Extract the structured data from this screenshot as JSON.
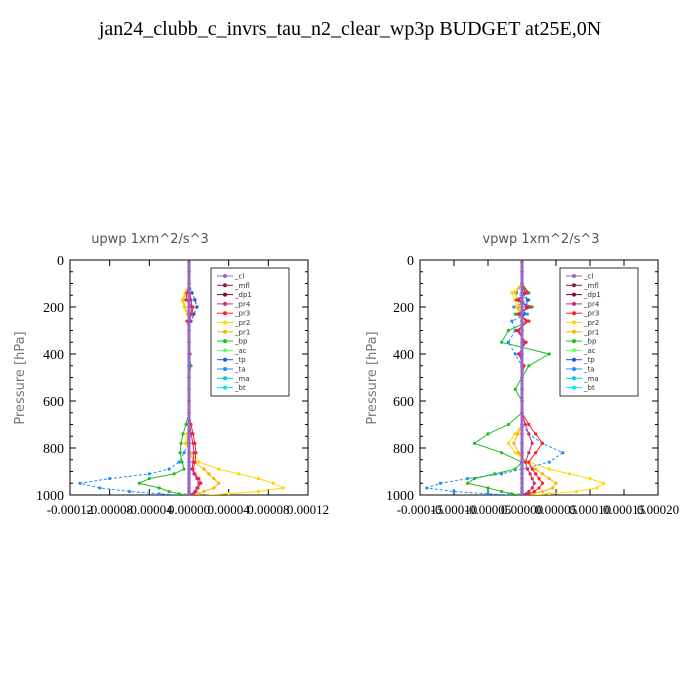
{
  "page": {
    "title": "jan24_clubb_c_invrs_tau_n2_clear_wp3p  BUDGET at25E,0N"
  },
  "chart_data": [
    {
      "type": "line",
      "title": "upwp   1xm^2/s^3",
      "ylabel": "Pressure [hPa]",
      "xlim": [
        -0.00012,
        0.00012
      ],
      "ylim": [
        1000,
        0
      ],
      "y_reversed": true,
      "x_ticks": [
        -0.00012,
        -8e-05,
        -4e-05,
        0,
        4e-05,
        8e-05,
        0.00012
      ],
      "x_tick_labels": [
        "-0.00012",
        "-0.00008",
        "-0.00004",
        "0.00000",
        "0.00004",
        "0.00008",
        "0.00012"
      ],
      "y_ticks": [
        0,
        200,
        400,
        600,
        800,
        1000
      ],
      "y_tick_labels": [
        "0",
        "200",
        "400",
        "600",
        "800",
        "1000"
      ],
      "legend": {
        "position": "top-right",
        "entries": [
          "_cl",
          "_mfl",
          "_dp1",
          "_pr4",
          "_pr3",
          "_pr2",
          "_pr1",
          "_bp",
          "_ac",
          "_tp",
          "_ta",
          "_ma",
          "_bt"
        ]
      },
      "pressure": [
        10,
        50,
        100,
        140,
        170,
        200,
        230,
        260,
        300,
        350,
        400,
        450,
        500,
        550,
        600,
        650,
        700,
        740,
        780,
        820,
        860,
        890,
        910,
        930,
        950,
        970,
        985,
        995,
        1000
      ],
      "series": [
        {
          "name": "_cl",
          "color": "#9966cc",
          "values": [
            0,
            0,
            0,
            0,
            0,
            0,
            0,
            0,
            0,
            0,
            0,
            0,
            0,
            0,
            0,
            0,
            0,
            0,
            0,
            0,
            0,
            0,
            0,
            0,
            0,
            0,
            0,
            0,
            0
          ]
        },
        {
          "name": "_mfl",
          "color": "#8b1a4a",
          "values": [
            0,
            0,
            0,
            0,
            0,
            0,
            0,
            0,
            0,
            0,
            0,
            0,
            0,
            0,
            0,
            0,
            0,
            0,
            0,
            0,
            0,
            0,
            0,
            0,
            0,
            0,
            0,
            0,
            0
          ]
        },
        {
          "name": "_dp1",
          "color": "#800040",
          "values": [
            0,
            0,
            0,
            0,
            0,
            0,
            0,
            0,
            0,
            0,
            0,
            0,
            0,
            0,
            0,
            0,
            0,
            0,
            0,
            0,
            0,
            0,
            0,
            0,
            0,
            0,
            0,
            0,
            0
          ]
        },
        {
          "name": "_pr4",
          "color": "#cc2a7a",
          "values": [
            0,
            0,
            0,
            1e-06,
            2e-06,
            3e-06,
            2e-06,
            1e-06,
            0,
            0,
            0,
            0,
            0,
            0,
            0,
            0,
            1e-06,
            2e-06,
            4e-06,
            5e-06,
            4e-06,
            3e-06,
            5e-06,
            8e-06,
            1e-05,
            8e-06,
            6e-06,
            4e-06,
            2e-06
          ]
        },
        {
          "name": "_pr3",
          "color": "#ff2020",
          "values": [
            0,
            0,
            0,
            -2e-06,
            -3e-06,
            4e-06,
            3e-06,
            -2e-06,
            0,
            0,
            1e-06,
            0,
            0,
            0,
            0,
            0,
            2e-06,
            4e-06,
            6e-06,
            7e-06,
            6e-06,
            4e-06,
            6e-06,
            1e-05,
            1.2e-05,
            9e-06,
            7e-06,
            5e-06,
            3e-06
          ]
        },
        {
          "name": "_pr2",
          "color": "#ffd700",
          "values": [
            0,
            0,
            0,
            -4e-06,
            -7e-06,
            -5e-06,
            -2e-06,
            0,
            0,
            0,
            0,
            0,
            0,
            0,
            0,
            0,
            0,
            -2e-06,
            -4e-06,
            2e-06,
            1e-05,
            3e-05,
            5e-05,
            7e-05,
            8.5e-05,
            9.5e-05,
            7e-05,
            4e-05,
            2e-05
          ]
        },
        {
          "name": "_pr1",
          "color": "#ffb000",
          "values": [
            0,
            0,
            0,
            -3e-06,
            -6e-06,
            -4e-06,
            -1e-06,
            0,
            0,
            0,
            0,
            0,
            0,
            0,
            0,
            0,
            0,
            -1e-06,
            -2e-06,
            1e-06,
            5e-06,
            1.5e-05,
            2e-05,
            2.5e-05,
            3e-05,
            2.5e-05,
            1.5e-05,
            1e-05,
            5e-06
          ]
        },
        {
          "name": "_bp",
          "color": "#22bb22",
          "values": [
            0,
            0,
            0,
            0,
            0,
            0,
            0,
            0,
            0,
            0,
            0,
            2e-06,
            0,
            0,
            0,
            0,
            -3e-06,
            -6e-06,
            -8e-06,
            -9e-06,
            -7e-06,
            -5e-06,
            -1.5e-05,
            -4e-05,
            -5e-05,
            -3e-05,
            -2e-05,
            -1e-05,
            -4e-06
          ]
        },
        {
          "name": "_ac",
          "color": "#66ff66",
          "values": [
            0,
            0,
            0,
            0,
            0,
            0,
            0,
            0,
            0,
            0,
            0,
            0,
            0,
            0,
            0,
            0,
            0,
            0,
            0,
            0,
            0,
            0,
            0,
            0,
            0,
            0,
            0,
            0,
            0
          ]
        },
        {
          "name": "_tp",
          "color": "#2255ee",
          "values": [
            0,
            0,
            0,
            3e-06,
            6e-06,
            8e-06,
            5e-06,
            2e-06,
            0,
            0,
            0,
            0,
            0,
            0,
            0,
            0,
            0,
            0,
            0,
            0,
            0,
            0,
            0,
            0,
            0,
            0,
            0,
            0,
            0
          ]
        },
        {
          "name": "_ta",
          "color": "#1e90ff",
          "values": [
            0,
            0,
            0,
            3e-06,
            6e-06,
            8e-06,
            5e-06,
            2e-06,
            0,
            0,
            0,
            0,
            0,
            0,
            0,
            0,
            0,
            0,
            0,
            -5e-06,
            -1e-05,
            -2e-05,
            -4e-05,
            -8e-05,
            -0.00011,
            -9e-05,
            -6e-05,
            -3e-05,
            -1e-05
          ]
        },
        {
          "name": "_ma",
          "color": "#00ced1",
          "values": [
            0,
            0,
            0,
            0,
            0,
            0,
            0,
            0,
            0,
            0,
            0,
            0,
            0,
            0,
            0,
            0,
            0,
            0,
            0,
            0,
            0,
            0,
            0,
            0,
            0,
            0,
            0,
            0,
            0
          ]
        },
        {
          "name": "_bt",
          "color": "#00e5ff",
          "values": [
            0,
            0,
            0,
            0,
            0,
            0,
            0,
            0,
            0,
            0,
            0,
            0,
            0,
            0,
            0,
            0,
            0,
            0,
            0,
            0,
            0,
            0,
            0,
            0,
            0,
            0,
            0,
            0,
            0
          ]
        }
      ]
    },
    {
      "type": "line",
      "title": "vpwp   1xm^2/s^3",
      "ylabel": "Pressure [hPa]",
      "xlim": [
        -0.00015,
        0.0002
      ],
      "ylim": [
        1000,
        0
      ],
      "y_reversed": true,
      "x_ticks": [
        -0.00015,
        -0.0001,
        -5e-05,
        0,
        5e-05,
        0.0001,
        0.00015,
        0.0002
      ],
      "x_tick_labels": [
        "-0.00015",
        "-0.00010",
        "-0.00005",
        "0.00000",
        "0.00005",
        "0.00010",
        "0.00015",
        "0.00020"
      ],
      "y_ticks": [
        0,
        200,
        400,
        600,
        800,
        1000
      ],
      "y_tick_labels": [
        "0",
        "200",
        "400",
        "600",
        "800",
        "1000"
      ],
      "legend": {
        "position": "top-right",
        "entries": [
          "_cl",
          "_mfl",
          "_dp1",
          "_pr4",
          "_pr3",
          "_pr2",
          "_pr1",
          "_bp",
          "_ac",
          "_tp",
          "_ta",
          "_ma",
          "_bt"
        ]
      },
      "pressure": [
        10,
        50,
        100,
        140,
        170,
        200,
        230,
        260,
        300,
        350,
        400,
        450,
        500,
        550,
        600,
        650,
        700,
        740,
        780,
        820,
        860,
        890,
        910,
        930,
        950,
        970,
        985,
        995,
        1000
      ],
      "series": [
        {
          "name": "_cl",
          "color": "#9966cc",
          "values": [
            0,
            0,
            0,
            0,
            0,
            0,
            0,
            0,
            0,
            0,
            0,
            0,
            0,
            0,
            0,
            0,
            0,
            0,
            0,
            0,
            0,
            0,
            0,
            0,
            0,
            0,
            0,
            0,
            0
          ]
        },
        {
          "name": "_mfl",
          "color": "#8b1a4a",
          "values": [
            0,
            0,
            0,
            0,
            0,
            0,
            0,
            0,
            0,
            0,
            0,
            0,
            0,
            0,
            0,
            0,
            0,
            0,
            0,
            0,
            0,
            0,
            0,
            0,
            0,
            0,
            0,
            0,
            0
          ]
        },
        {
          "name": "_dp1",
          "color": "#800040",
          "values": [
            0,
            0,
            0,
            0,
            0,
            0,
            0,
            0,
            0,
            0,
            0,
            0,
            0,
            0,
            0,
            0,
            0,
            0,
            0,
            0,
            0,
            0,
            0,
            0,
            0,
            0,
            0,
            0,
            0
          ]
        },
        {
          "name": "_pr4",
          "color": "#cc2a7a",
          "values": [
            0,
            0,
            0,
            5e-06,
            -5e-06,
            8e-06,
            -4e-06,
            6e-06,
            -5e-06,
            4e-06,
            -3e-06,
            0,
            0,
            0,
            0,
            0,
            5e-06,
            1e-05,
            1.5e-05,
            1e-05,
            5e-06,
            8e-06,
            1.2e-05,
            1.5e-05,
            1.8e-05,
            1.5e-05,
            1e-05,
            6e-06,
            3e-06
          ]
        },
        {
          "name": "_pr3",
          "color": "#ff2020",
          "values": [
            0,
            0,
            0,
            8e-06,
            -8e-06,
            1.2e-05,
            -6e-06,
            1e-05,
            -8e-06,
            6e-06,
            -5e-06,
            3e-06,
            0,
            0,
            0,
            0,
            1e-05,
            2e-05,
            3e-05,
            2e-05,
            1e-05,
            1.5e-05,
            2e-05,
            2.5e-05,
            3e-05,
            2.5e-05,
            1.8e-05,
            1e-05,
            5e-06
          ]
        },
        {
          "name": "_pr2",
          "color": "#ffd700",
          "values": [
            0,
            0,
            0,
            -1.5e-05,
            -1e-05,
            -8e-06,
            -4e-06,
            0,
            0,
            0,
            0,
            0,
            0,
            0,
            0,
            0,
            0,
            -1e-05,
            -2e-05,
            -1e-05,
            1e-05,
            4e-05,
            7e-05,
            0.0001,
            0.00012,
            0.00011,
            8e-05,
            4e-05,
            2e-05
          ]
        },
        {
          "name": "_pr1",
          "color": "#ffb000",
          "values": [
            0,
            0,
            0,
            -1e-05,
            -6e-06,
            -5e-06,
            -2e-06,
            0,
            0,
            0,
            0,
            0,
            0,
            0,
            0,
            0,
            0,
            -6e-06,
            -1.2e-05,
            -5e-06,
            5e-06,
            2e-05,
            3e-05,
            4e-05,
            5e-05,
            4.5e-05,
            3e-05,
            1.5e-05,
            8e-06
          ]
        },
        {
          "name": "_bp",
          "color": "#22bb22",
          "values": [
            0,
            0,
            0,
            1e-05,
            -1e-05,
            1.5e-05,
            -1e-05,
            1e-05,
            -2e-05,
            -3e-05,
            4e-05,
            1e-05,
            0,
            -1e-05,
            0,
            0,
            -2e-05,
            -5e-05,
            -7e-05,
            -3e-05,
            0,
            -1e-05,
            -4e-05,
            -7e-05,
            -8e-05,
            -5e-05,
            -3e-05,
            -1.5e-05,
            -5e-06
          ]
        },
        {
          "name": "_ac",
          "color": "#66ff66",
          "values": [
            0,
            0,
            0,
            0,
            0,
            0,
            0,
            0,
            0,
            0,
            0,
            0,
            0,
            0,
            0,
            0,
            0,
            0,
            0,
            0,
            0,
            0,
            0,
            0,
            0,
            0,
            0,
            0,
            0
          ]
        },
        {
          "name": "_tp",
          "color": "#2255ee",
          "values": [
            0,
            0,
            0,
            4e-06,
            8e-06,
            6e-06,
            3e-06,
            0,
            0,
            0,
            0,
            0,
            0,
            0,
            0,
            0,
            0,
            0,
            0,
            0,
            0,
            0,
            0,
            0,
            0,
            0,
            0,
            0,
            0
          ]
        },
        {
          "name": "_ta",
          "color": "#1e90ff",
          "values": [
            0,
            0,
            0,
            -8e-06,
            1e-05,
            -1.2e-05,
            8e-06,
            -1.5e-05,
            -1e-05,
            -2e-05,
            -1e-05,
            0,
            0,
            0,
            0,
            0,
            0,
            1e-05,
            3e-05,
            6e-05,
            4e-05,
            0,
            -3e-05,
            -8e-05,
            -0.00012,
            -0.00014,
            -0.0001,
            -5e-05,
            -2e-05
          ]
        },
        {
          "name": "_ma",
          "color": "#00ced1",
          "values": [
            0,
            0,
            0,
            0,
            0,
            0,
            0,
            0,
            0,
            0,
            0,
            0,
            0,
            0,
            0,
            0,
            0,
            0,
            0,
            0,
            0,
            0,
            0,
            0,
            0,
            0,
            0,
            0,
            0
          ]
        },
        {
          "name": "_bt",
          "color": "#00e5ff",
          "values": [
            0,
            0,
            0,
            0,
            0,
            0,
            0,
            0,
            0,
            0,
            0,
            0,
            0,
            0,
            0,
            0,
            0,
            0,
            0,
            0,
            0,
            0,
            0,
            0,
            0,
            0,
            0,
            0,
            0
          ]
        }
      ]
    }
  ]
}
